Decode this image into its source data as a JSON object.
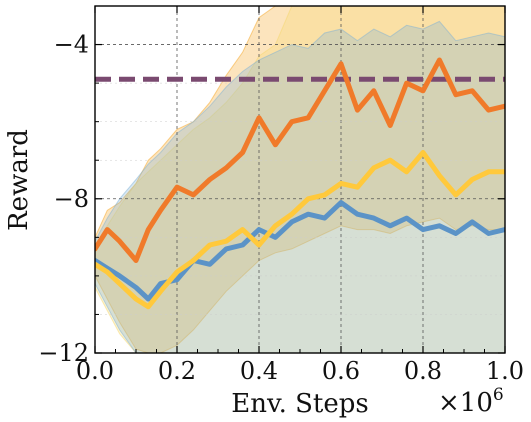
{
  "chart_data": {
    "type": "line",
    "xlabel": "Env. Steps",
    "ylabel": "Reward",
    "x_multiplier_label": "×10",
    "x_multiplier_exp": "6",
    "xlim": [
      0.0,
      1.0
    ],
    "ylim": [
      -12,
      -3
    ],
    "x_ticks": [
      0.0,
      0.2,
      0.4,
      0.6,
      0.8,
      1.0
    ],
    "x_tick_labels": [
      "0.0",
      "0.2",
      "0.4",
      "0.6",
      "0.8",
      "1.0"
    ],
    "y_ticks": [
      -12,
      -8,
      -4
    ],
    "y_tick_labels": [
      "−12",
      "−8",
      "−4"
    ],
    "grid": true,
    "reference_line": {
      "y": -4.9,
      "color": "#7a4a70",
      "style": "dashed"
    },
    "series": [
      {
        "color": "#f07a2a",
        "band_color": "#f5a623",
        "x": [
          0.0,
          0.03,
          0.06,
          0.1,
          0.13,
          0.16,
          0.2,
          0.24,
          0.28,
          0.32,
          0.36,
          0.4,
          0.44,
          0.48,
          0.52,
          0.56,
          0.6,
          0.64,
          0.68,
          0.72,
          0.76,
          0.8,
          0.84,
          0.88,
          0.92,
          0.96,
          1.0
        ],
        "values": [
          -9.3,
          -8.8,
          -9.1,
          -9.6,
          -8.8,
          -8.3,
          -7.7,
          -7.9,
          -7.5,
          -7.2,
          -6.8,
          -5.9,
          -6.6,
          -6.0,
          -5.9,
          -5.2,
          -4.5,
          -5.7,
          -5.2,
          -6.1,
          -5.0,
          -5.2,
          -4.4,
          -5.3,
          -5.2,
          -5.7,
          -5.6
        ],
        "band_low": [
          -10.0,
          -10.6,
          -11.2,
          -11.9,
          -12.0,
          -12.0,
          -11.8,
          -11.4,
          -10.9,
          -10.4,
          -10.0,
          -9.6,
          -9.4,
          -9.3,
          -9.1,
          -8.9,
          -8.7,
          -8.8,
          -8.8,
          -8.9,
          -8.7,
          -8.6,
          -8.5,
          -8.8,
          -8.7,
          -8.8,
          -8.8
        ],
        "band_high": [
          -9.0,
          -8.3,
          -8.1,
          -7.6,
          -7.0,
          -6.7,
          -6.2,
          -6.0,
          -5.5,
          -4.8,
          -4.2,
          -3.3,
          -3.0,
          -3.0,
          -3.0,
          -3.0,
          -3.0,
          -3.0,
          -3.0,
          -3.0,
          -3.0,
          -3.0,
          -3.0,
          -3.0,
          -3.0,
          -3.0,
          -3.0
        ]
      },
      {
        "color": "#ffc93c",
        "band_color": "#f5d76e",
        "x": [
          0.0,
          0.03,
          0.06,
          0.1,
          0.13,
          0.16,
          0.2,
          0.24,
          0.28,
          0.32,
          0.36,
          0.4,
          0.44,
          0.48,
          0.52,
          0.56,
          0.6,
          0.64,
          0.68,
          0.72,
          0.76,
          0.8,
          0.84,
          0.88,
          0.92,
          0.96,
          1.0
        ],
        "values": [
          -9.7,
          -9.9,
          -10.2,
          -10.6,
          -10.8,
          -10.4,
          -9.9,
          -9.6,
          -9.2,
          -9.1,
          -8.8,
          -9.2,
          -8.7,
          -8.4,
          -8.0,
          -7.9,
          -7.6,
          -7.7,
          -7.2,
          -7.0,
          -7.3,
          -6.8,
          -7.4,
          -7.9,
          -7.5,
          -7.3,
          -7.3
        ],
        "band_low": [
          -10.3,
          -10.9,
          -11.5,
          -12.0,
          -12.0,
          -12.0,
          -12.0,
          -12.0,
          -12.0,
          -12.0,
          -12.0,
          -12.0,
          -12.0,
          -12.0,
          -12.0,
          -12.0,
          -12.0,
          -12.0,
          -12.0,
          -12.0,
          -12.0,
          -12.0,
          -12.0,
          -12.0,
          -12.0,
          -12.0,
          -12.0
        ],
        "band_high": [
          -9.2,
          -8.7,
          -8.2,
          -7.6,
          -7.3,
          -7.0,
          -6.6,
          -6.2,
          -5.9,
          -5.5,
          -5.0,
          -4.3,
          -4.0,
          -3.0,
          -3.0,
          -3.0,
          -3.0,
          -3.0,
          -3.0,
          -3.0,
          -3.0,
          -3.0,
          -3.0,
          -3.0,
          -3.0,
          -3.0,
          -3.0
        ]
      },
      {
        "color": "#5b93c7",
        "band_color": "#7fb2d6",
        "x": [
          0.0,
          0.03,
          0.06,
          0.1,
          0.13,
          0.16,
          0.2,
          0.24,
          0.28,
          0.32,
          0.36,
          0.4,
          0.44,
          0.48,
          0.52,
          0.56,
          0.6,
          0.64,
          0.68,
          0.72,
          0.76,
          0.8,
          0.84,
          0.88,
          0.92,
          0.96,
          1.0
        ],
        "values": [
          -9.6,
          -9.8,
          -10.0,
          -10.3,
          -10.6,
          -10.2,
          -10.1,
          -9.6,
          -9.7,
          -9.3,
          -9.2,
          -8.8,
          -9.0,
          -8.6,
          -8.4,
          -8.5,
          -8.1,
          -8.4,
          -8.5,
          -8.7,
          -8.5,
          -8.8,
          -8.7,
          -8.9,
          -8.6,
          -8.9,
          -8.8
        ],
        "band_low": [
          -10.2,
          -10.8,
          -11.4,
          -12.0,
          -12.0,
          -12.0,
          -12.0,
          -12.0,
          -12.0,
          -12.0,
          -12.0,
          -12.0,
          -12.0,
          -12.0,
          -12.0,
          -12.0,
          -12.0,
          -12.0,
          -12.0,
          -12.0,
          -12.0,
          -12.0,
          -12.0,
          -12.0,
          -12.0,
          -12.0,
          -12.0
        ],
        "band_high": [
          -9.1,
          -8.5,
          -8.0,
          -7.5,
          -7.1,
          -6.8,
          -6.3,
          -6.0,
          -5.6,
          -5.1,
          -4.7,
          -4.4,
          -4.2,
          -4.0,
          -4.1,
          -3.7,
          -3.6,
          -3.9,
          -3.6,
          -3.8,
          -3.5,
          -3.6,
          -3.4,
          -3.9,
          -3.8,
          -3.7,
          -3.8
        ]
      }
    ]
  }
}
